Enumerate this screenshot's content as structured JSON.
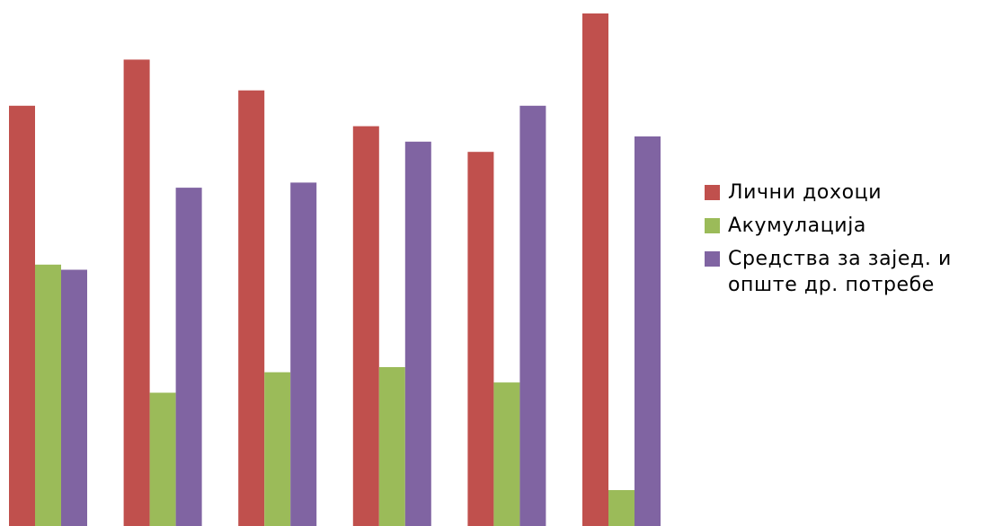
{
  "chart_data": {
    "type": "bar",
    "title": "",
    "xlabel": "",
    "ylabel": "",
    "categories": [
      "",
      "",
      "",
      "",
      "",
      ""
    ],
    "ylim": [
      0,
      100
    ],
    "grid": false,
    "legend_position": "right",
    "series": [
      {
        "name": "Лични дохоци",
        "color": "#c0504d",
        "values": [
          82,
          91,
          85,
          78,
          73,
          100
        ]
      },
      {
        "name": "Акумулација",
        "color": "#9bbb59",
        "values": [
          51,
          26,
          30,
          31,
          28,
          7
        ]
      },
      {
        "name": "Средства за заjед. и опште др. потребе",
        "color": "#8064a2",
        "values": [
          50,
          66,
          67,
          75,
          82,
          76
        ]
      }
    ]
  },
  "legend": {
    "items": [
      {
        "label": "Лични дохоци",
        "color": "#c0504d"
      },
      {
        "label": "Акумулација",
        "color": "#9bbb59"
      },
      {
        "label": "Средства за заjед. и опште др. потребе",
        "color": "#8064a2"
      }
    ]
  }
}
